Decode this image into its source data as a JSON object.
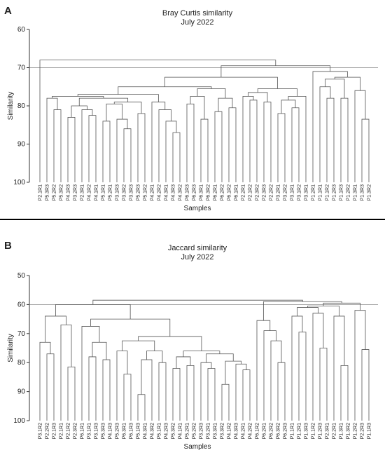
{
  "chart_data": [
    {
      "type": "dendrogram",
      "panel_label": "A",
      "title": "Bray Curtis similarity",
      "subtitle": "July 2022",
      "y_label": "Similarity",
      "x_label": "Samples",
      "ylim": [
        60,
        100
      ],
      "yticks": [
        60,
        70,
        80,
        90,
        100
      ],
      "y_reversed": true,
      "reference_line": 70,
      "color": "#555555",
      "leaves": [
        "P2.1R1",
        "P5.3R3",
        "P5.2R2",
        "P5.3R2",
        "P4.1R3",
        "P3.2R3",
        "P2.3R1",
        "P4.1R2",
        "P4.1R1",
        "P5.1R1",
        "P5.2R1",
        "P3.1R3",
        "P3.3R2",
        "P3.3R3",
        "P5.2R3",
        "P5.1R2",
        "P4.2R1",
        "P4.2R2",
        "P4.3R1",
        "P4.3R3",
        "P4.3R2",
        "P6.1R3",
        "P6.2R3",
        "P6.3R1",
        "P6.3R2",
        "P6.2R1",
        "P6.2R2",
        "P6.1R2",
        "P6.1R1",
        "P2.2R1",
        "P2.1R2",
        "P2.3R2",
        "P2.3R3",
        "P2.2R2",
        "P3.2R1",
        "P3.2R2",
        "P3.1R1",
        "P3.1R2",
        "P3.3R1",
        "P1.2R1",
        "P1.1R1",
        "P1.1R2",
        "P1.2R3",
        "P1.1R3",
        "P1.2R2",
        "P1.3R1",
        "P1.3R3",
        "P1.3R2"
      ],
      "merges": [
        [
          2,
          3,
          81
        ],
        [
          1,
          48,
          78
        ],
        [
          4,
          5,
          83
        ],
        [
          7,
          8,
          82.5
        ],
        [
          6,
          51,
          81
        ],
        [
          50,
          52,
          80
        ],
        [
          9,
          10,
          84
        ],
        [
          12,
          13,
          86
        ],
        [
          11,
          55,
          83.5
        ],
        [
          54,
          56,
          79.5
        ],
        [
          14,
          15,
          82
        ],
        [
          57,
          58,
          79
        ],
        [
          53,
          59,
          78
        ],
        [
          49,
          60,
          77.5
        ],
        [
          19,
          20,
          87
        ],
        [
          18,
          62,
          84
        ],
        [
          17,
          63,
          81
        ],
        [
          16,
          64,
          79
        ],
        [
          61,
          65,
          77
        ],
        [
          21,
          22,
          79.5
        ],
        [
          23,
          24,
          83.5
        ],
        [
          67,
          68,
          77.5
        ],
        [
          25,
          26,
          81.5
        ],
        [
          27,
          28,
          80.5
        ],
        [
          70,
          71,
          78
        ],
        [
          69,
          72,
          75.5
        ],
        [
          66,
          73,
          75
        ],
        [
          30,
          31,
          78.5
        ],
        [
          29,
          75,
          77.5
        ],
        [
          32,
          33,
          79
        ],
        [
          76,
          77,
          76.5
        ],
        [
          34,
          35,
          82
        ],
        [
          36,
          37,
          80.5
        ],
        [
          79,
          80,
          78.5
        ],
        [
          81,
          38,
          77.5
        ],
        [
          78,
          82,
          75.5
        ],
        [
          74,
          83,
          72.5
        ],
        [
          41,
          42,
          78
        ],
        [
          40,
          85,
          75
        ],
        [
          43,
          44,
          78
        ],
        [
          86,
          87,
          73
        ],
        [
          46,
          47,
          83.5
        ],
        [
          45,
          89,
          76
        ],
        [
          88,
          90,
          72.5
        ],
        [
          39,
          91,
          71
        ],
        [
          84,
          92,
          69.5
        ],
        [
          0,
          93,
          68
        ]
      ]
    },
    {
      "type": "dendrogram",
      "panel_label": "B",
      "title": "Jaccard similarity",
      "subtitle": "July 2022",
      "y_label": "Similarity",
      "x_label": "Samples",
      "ylim": [
        50,
        100
      ],
      "yticks": [
        50,
        60,
        70,
        80,
        90,
        100
      ],
      "y_reversed": true,
      "reference_line": 60,
      "color": "#555555",
      "leaves": [
        "P3.1R2",
        "P2.2R2",
        "P2.1R3",
        "P2.1R1",
        "P2.1R2",
        "P2.3R2",
        "P6.1R1",
        "P3.1R1",
        "P3.1R3",
        "P5.3R3",
        "P4.1R3",
        "P5.2R3",
        "P6.3R1",
        "P6.1R3",
        "P5.1R3",
        "P4.3R1",
        "P4.3R2",
        "P5.1R1",
        "P4.2R3",
        "P5.3R2",
        "P4.1R1",
        "P5.2R1",
        "P5.2R2",
        "P3.2R3",
        "P3.2R1",
        "P3.3R1",
        "P3.3R2",
        "P4.1R2",
        "P4.3R3",
        "P4.2R1",
        "P4.2R2",
        "P6.1R2",
        "P6.2R1",
        "P6.2R2",
        "P6.3R2",
        "P6.2R3",
        "P1.1R1",
        "P1.2R1",
        "P1.3R3",
        "P1.1R2",
        "P1.2R3",
        "P2.3R1",
        "P2.2R1",
        "P1.3R1",
        "P1.3R2",
        "P1.2R2",
        "P2.2R3",
        "P1.1R3"
      ],
      "merges": [
        [
          1,
          2,
          77
        ],
        [
          0,
          48,
          73
        ],
        [
          4,
          5,
          81.5
        ],
        [
          3,
          50,
          67
        ],
        [
          49,
          51,
          64
        ],
        [
          7,
          8,
          78
        ],
        [
          9,
          10,
          79
        ],
        [
          53,
          54,
          73
        ],
        [
          6,
          55,
          67.5
        ],
        [
          12,
          13,
          84
        ],
        [
          11,
          57,
          76
        ],
        [
          14,
          15,
          91
        ],
        [
          59,
          16,
          79
        ],
        [
          17,
          18,
          80
        ],
        [
          60,
          61,
          76
        ],
        [
          58,
          62,
          72.5
        ],
        [
          19,
          20,
          82
        ],
        [
          21,
          22,
          81
        ],
        [
          64,
          65,
          78
        ],
        [
          24,
          25,
          82
        ],
        [
          23,
          67,
          80
        ],
        [
          26,
          27,
          87.5
        ],
        [
          29,
          30,
          82.5
        ],
        [
          28,
          70,
          80.5
        ],
        [
          69,
          71,
          79.5
        ],
        [
          68,
          72,
          77
        ],
        [
          66,
          73,
          76
        ],
        [
          63,
          74,
          71
        ],
        [
          56,
          75,
          65
        ],
        [
          52,
          76,
          60
        ],
        [
          34,
          35,
          80
        ],
        [
          33,
          78,
          72.5
        ],
        [
          32,
          79,
          69
        ],
        [
          31,
          80,
          65.5
        ],
        [
          37,
          38,
          69.5
        ],
        [
          36,
          82,
          64
        ],
        [
          40,
          41,
          75
        ],
        [
          39,
          84,
          63
        ],
        [
          83,
          85,
          61
        ],
        [
          43,
          44,
          81
        ],
        [
          42,
          87,
          64
        ],
        [
          46,
          47,
          75.5
        ],
        [
          45,
          89,
          62
        ],
        [
          86,
          88,
          60.5
        ],
        [
          91,
          90,
          59.5
        ],
        [
          81,
          92,
          59
        ],
        [
          77,
          93,
          58.5
        ]
      ]
    }
  ]
}
